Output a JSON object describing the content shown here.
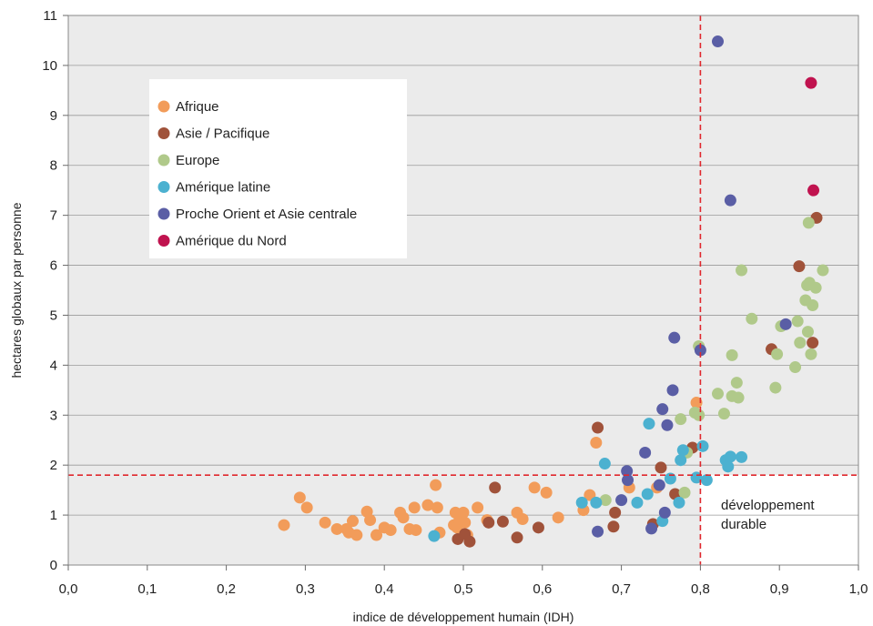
{
  "chart_data": {
    "type": "scatter",
    "title": "",
    "xlabel": "indice de développement humain (IDH)",
    "ylabel": "hectares globaux par personne",
    "xlim": [
      0,
      1
    ],
    "ylim": [
      0,
      11
    ],
    "x_ticks": [
      "0,0",
      "0,1",
      "0,2",
      "0,3",
      "0,4",
      "0,5",
      "0,6",
      "0,7",
      "0,8",
      "0,9",
      "1,0"
    ],
    "y_ticks": [
      "0",
      "1",
      "2",
      "3",
      "4",
      "5",
      "6",
      "7",
      "8",
      "9",
      "10",
      "11"
    ],
    "grid": "horizontal",
    "legend_position": "upper-left",
    "thresholds": {
      "x": 0.8,
      "y": 1.8
    },
    "annotation": [
      "développement",
      "durable"
    ],
    "colors": {
      "plot_background": "#ebebeb",
      "quadrant_background": "#ffffff",
      "threshold_line": "#e0282e"
    },
    "series": [
      {
        "name": "Afrique",
        "color": "#f29c5a",
        "points": [
          [
            0.273,
            0.8
          ],
          [
            0.293,
            1.35
          ],
          [
            0.302,
            1.15
          ],
          [
            0.325,
            0.85
          ],
          [
            0.34,
            0.72
          ],
          [
            0.352,
            0.72
          ],
          [
            0.355,
            0.65
          ],
          [
            0.36,
            0.88
          ],
          [
            0.365,
            0.6
          ],
          [
            0.378,
            1.07
          ],
          [
            0.382,
            0.9
          ],
          [
            0.39,
            0.6
          ],
          [
            0.4,
            0.75
          ],
          [
            0.408,
            0.7
          ],
          [
            0.42,
            1.05
          ],
          [
            0.424,
            0.95
          ],
          [
            0.432,
            0.72
          ],
          [
            0.438,
            1.15
          ],
          [
            0.44,
            0.7
          ],
          [
            0.455,
            1.2
          ],
          [
            0.465,
            1.6
          ],
          [
            0.467,
            1.15
          ],
          [
            0.47,
            0.65
          ],
          [
            0.488,
            0.8
          ],
          [
            0.49,
            1.05
          ],
          [
            0.492,
            0.75
          ],
          [
            0.495,
            0.9
          ],
          [
            0.5,
            1.05
          ],
          [
            0.502,
            0.85
          ],
          [
            0.505,
            0.6
          ],
          [
            0.518,
            1.15
          ],
          [
            0.53,
            0.9
          ],
          [
            0.568,
            1.05
          ],
          [
            0.575,
            0.92
          ],
          [
            0.59,
            1.55
          ],
          [
            0.605,
            1.45
          ],
          [
            0.62,
            0.95
          ],
          [
            0.652,
            1.1
          ],
          [
            0.66,
            1.4
          ],
          [
            0.668,
            2.45
          ],
          [
            0.71,
            1.55
          ],
          [
            0.745,
            1.55
          ],
          [
            0.795,
            3.25
          ]
        ]
      },
      {
        "name": "Asie / Pacifique",
        "color": "#a0523a",
        "points": [
          [
            0.493,
            0.52
          ],
          [
            0.502,
            0.62
          ],
          [
            0.508,
            0.47
          ],
          [
            0.532,
            0.85
          ],
          [
            0.54,
            1.55
          ],
          [
            0.55,
            0.87
          ],
          [
            0.568,
            0.55
          ],
          [
            0.595,
            0.75
          ],
          [
            0.67,
            2.75
          ],
          [
            0.69,
            0.77
          ],
          [
            0.692,
            1.05
          ],
          [
            0.74,
            0.82
          ],
          [
            0.75,
            1.95
          ],
          [
            0.768,
            1.42
          ],
          [
            0.79,
            2.35
          ],
          [
            0.89,
            4.32
          ],
          [
            0.925,
            5.98
          ],
          [
            0.942,
            4.45
          ],
          [
            0.947,
            6.95
          ]
        ]
      },
      {
        "name": "Europe",
        "color": "#b0c98a",
        "points": [
          [
            0.68,
            1.3
          ],
          [
            0.775,
            2.92
          ],
          [
            0.78,
            1.45
          ],
          [
            0.783,
            2.25
          ],
          [
            0.793,
            3.05
          ],
          [
            0.798,
            3.0
          ],
          [
            0.798,
            4.38
          ],
          [
            0.822,
            3.43
          ],
          [
            0.83,
            3.03
          ],
          [
            0.84,
            4.2
          ],
          [
            0.84,
            3.38
          ],
          [
            0.846,
            3.65
          ],
          [
            0.848,
            3.35
          ],
          [
            0.852,
            5.9
          ],
          [
            0.865,
            4.93
          ],
          [
            0.895,
            3.55
          ],
          [
            0.897,
            4.22
          ],
          [
            0.902,
            4.78
          ],
          [
            0.92,
            3.96
          ],
          [
            0.923,
            4.88
          ],
          [
            0.926,
            4.45
          ],
          [
            0.933,
            5.3
          ],
          [
            0.935,
            5.6
          ],
          [
            0.936,
            4.67
          ],
          [
            0.937,
            6.85
          ],
          [
            0.938,
            5.65
          ],
          [
            0.94,
            4.22
          ],
          [
            0.942,
            5.2
          ],
          [
            0.946,
            5.55
          ],
          [
            0.955,
            5.9
          ]
        ]
      },
      {
        "name": "Amérique latine",
        "color": "#4cb1d0",
        "points": [
          [
            0.463,
            0.58
          ],
          [
            0.65,
            1.25
          ],
          [
            0.668,
            1.25
          ],
          [
            0.679,
            2.03
          ],
          [
            0.72,
            1.25
          ],
          [
            0.733,
            1.42
          ],
          [
            0.735,
            2.83
          ],
          [
            0.752,
            0.88
          ],
          [
            0.762,
            1.73
          ],
          [
            0.773,
            1.25
          ],
          [
            0.775,
            2.1
          ],
          [
            0.778,
            2.3
          ],
          [
            0.795,
            1.75
          ],
          [
            0.803,
            2.38
          ],
          [
            0.808,
            1.7
          ],
          [
            0.832,
            2.1
          ],
          [
            0.835,
            1.97
          ],
          [
            0.838,
            2.17
          ],
          [
            0.852,
            2.16
          ]
        ]
      },
      {
        "name": "Proche Orient et Asie centrale",
        "color": "#5a5ea5",
        "points": [
          [
            0.67,
            0.67
          ],
          [
            0.7,
            1.3
          ],
          [
            0.707,
            1.88
          ],
          [
            0.708,
            1.7
          ],
          [
            0.73,
            2.25
          ],
          [
            0.738,
            0.73
          ],
          [
            0.748,
            1.6
          ],
          [
            0.752,
            3.12
          ],
          [
            0.755,
            1.05
          ],
          [
            0.758,
            2.8
          ],
          [
            0.765,
            3.5
          ],
          [
            0.767,
            4.55
          ],
          [
            0.8,
            4.3
          ],
          [
            0.822,
            10.48
          ],
          [
            0.838,
            7.3
          ],
          [
            0.908,
            4.82
          ]
        ]
      },
      {
        "name": "Amérique du Nord",
        "color": "#c0134f",
        "points": [
          [
            0.94,
            9.65
          ],
          [
            0.943,
            7.5
          ]
        ]
      }
    ]
  }
}
